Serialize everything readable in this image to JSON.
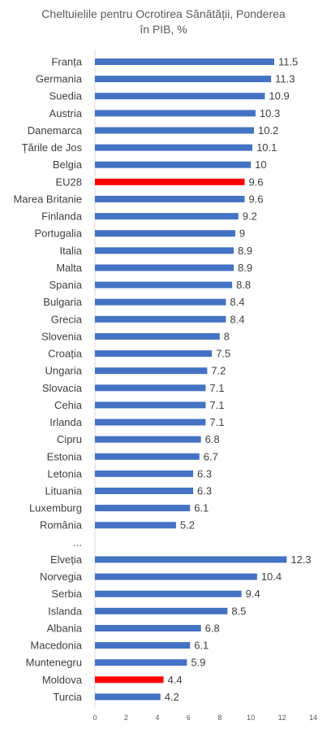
{
  "chart_data": {
    "type": "bar",
    "orientation": "horizontal",
    "title_line1": "Cheltuielile pentru Ocrotirea Sănătății, Ponderea",
    "title_line2": "în PIB, %",
    "xlim": [
      0,
      14
    ],
    "x_ticks": [
      "0",
      "2",
      "4",
      "6",
      "8",
      "10",
      "12",
      "14"
    ],
    "grid": false,
    "legend": "none",
    "default_color": "#4472C4",
    "highlight_color": "#FF0000",
    "categories": [
      "Franța",
      "Germania",
      "Suedia",
      "Austria",
      "Danemarca",
      "Țările de Jos",
      "Belgia",
      "EU28",
      "Marea Britanie",
      "Finlanda",
      "Portugalia",
      "Italia",
      "Malta",
      "Spania",
      "Bulgaria",
      "Grecia",
      "Slovenia",
      "Croația",
      "Ungaria",
      "Slovacia",
      "Cehia",
      "Irlanda",
      "Cipru",
      "Estonia",
      "Letonia",
      "Lituania",
      "Luxemburg",
      "România",
      "...",
      "Elveția",
      "Norvegia",
      "Serbia",
      "Islanda",
      "Albania",
      "Macedonia",
      "Muntenegru",
      "Moldova",
      "Turcia"
    ],
    "values": [
      11.5,
      11.3,
      10.9,
      10.3,
      10.2,
      10.1,
      10,
      9.6,
      9.6,
      9.2,
      9,
      8.9,
      8.9,
      8.8,
      8.4,
      8.4,
      8,
      7.5,
      7.2,
      7.1,
      7.1,
      7.1,
      6.8,
      6.7,
      6.3,
      6.3,
      6.1,
      5.2,
      null,
      12.3,
      10.4,
      9.4,
      8.5,
      6.8,
      6.1,
      5.9,
      4.4,
      4.2
    ],
    "value_labels": [
      "11.5",
      "11.3",
      "10.9",
      "10.3",
      "10.2",
      "10.1",
      "10",
      "9.6",
      "9.6",
      "9.2",
      "9",
      "8.9",
      "8.9",
      "8.8",
      "8.4",
      "8.4",
      "8",
      "7.5",
      "7.2",
      "7.1",
      "7.1",
      "7.1",
      "6.8",
      "6.7",
      "6.3",
      "6.3",
      "6.1",
      "5.2",
      "",
      "12.3",
      "10.4",
      "9.4",
      "8.5",
      "6.8",
      "6.1",
      "5.9",
      "4.4",
      "4.2"
    ],
    "highlighted": [
      "EU28",
      "Moldova"
    ]
  }
}
